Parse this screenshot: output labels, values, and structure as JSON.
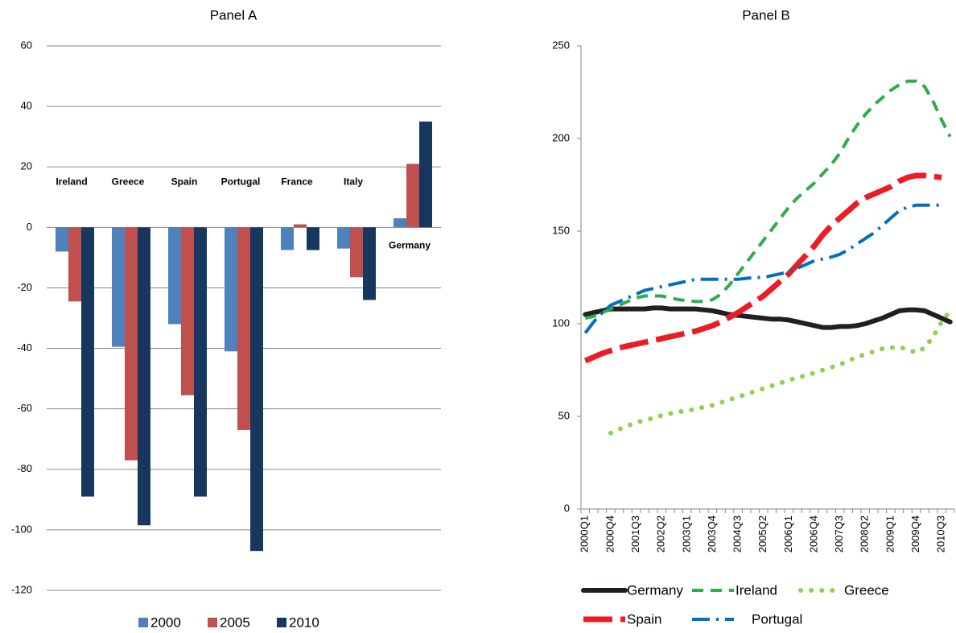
{
  "chart_data": [
    {
      "type": "bar",
      "title": "Panel A",
      "categories": [
        "Ireland",
        "Greece",
        "Spain",
        "Portugal",
        "France",
        "Italy",
        "Germany"
      ],
      "series": [
        {
          "name": "2000",
          "color": "#4f81bd",
          "values": [
            -8,
            -39.5,
            -32,
            -41,
            -7.5,
            -7,
            3
          ]
        },
        {
          "name": "2005",
          "color": "#c0504d",
          "values": [
            -24.5,
            -77,
            -55.5,
            -67,
            1,
            -16.5,
            21
          ]
        },
        {
          "name": "2010",
          "color": "#17375e",
          "values": [
            -89,
            -98.5,
            -89,
            -107,
            -7.5,
            -24,
            35
          ]
        }
      ],
      "ylim": [
        -120,
        60
      ],
      "yticks": [
        -120,
        -100,
        -80,
        -60,
        -40,
        -20,
        0,
        20,
        40,
        60
      ],
      "grid": true
    },
    {
      "type": "line",
      "title": "Panel B",
      "categories": [
        "2000Q1",
        null,
        null,
        "2000Q4",
        null,
        null,
        "2001Q3",
        null,
        null,
        "2002Q2",
        null,
        null,
        "2003Q1",
        null,
        null,
        "2003Q4",
        null,
        null,
        "2004Q3",
        null,
        null,
        "2005Q2",
        null,
        null,
        "2006Q1",
        null,
        null,
        "2006Q4",
        null,
        null,
        "2007Q3",
        null,
        null,
        "2008Q2",
        null,
        null,
        "2009Q1",
        null,
        null,
        "2009Q4",
        null,
        null,
        "2010Q3",
        null
      ],
      "series": [
        {
          "name": "Germany",
          "color": "#231f20",
          "style": "solid",
          "values": [
            105,
            106,
            107,
            108,
            108,
            108,
            108,
            108,
            108.5,
            108.5,
            108,
            108,
            108,
            108,
            107.5,
            107,
            106,
            105,
            104.5,
            104,
            103.5,
            103,
            102.5,
            102.5,
            102,
            101,
            100,
            99,
            98,
            98,
            98.5,
            98.5,
            99,
            100,
            101.5,
            103,
            105,
            107,
            107.5,
            107.5,
            107,
            105,
            103,
            101
          ]
        },
        {
          "name": "Ireland",
          "color": "#2fac4b",
          "style": "dashed",
          "values": [
            103,
            104,
            106,
            108,
            110,
            112,
            114,
            115,
            115,
            115,
            114,
            113,
            112.5,
            112,
            112,
            113,
            116,
            121,
            127,
            133,
            139,
            145,
            151,
            157,
            163,
            168,
            172,
            176,
            181,
            186,
            192,
            200,
            207,
            213,
            218,
            222,
            226,
            229,
            231,
            231,
            228,
            220,
            210,
            201
          ]
        },
        {
          "name": "Greece",
          "color": "#92d050",
          "style": "dotted",
          "values": [
            null,
            null,
            null,
            41,
            43,
            45,
            46.5,
            48,
            49,
            50.5,
            51.5,
            52.5,
            53,
            54,
            55,
            56,
            57.5,
            59,
            60.5,
            62,
            63.5,
            65,
            66.5,
            68,
            69.5,
            71,
            72,
            73.5,
            75,
            76.5,
            78,
            80,
            82,
            83.5,
            85,
            86.5,
            87,
            87.5,
            86,
            84.5,
            87,
            93,
            101,
            107
          ]
        },
        {
          "name": "Spain",
          "color": "#ed1c24",
          "style": "long-dash",
          "values": [
            80,
            82,
            84,
            85.5,
            87,
            88,
            89,
            90,
            91,
            92,
            93,
            94,
            95,
            96,
            97.5,
            99,
            101,
            103.5,
            106,
            109,
            112,
            115,
            119,
            123,
            127,
            132,
            137,
            142,
            148,
            153,
            157,
            161,
            165,
            168,
            170,
            172,
            174,
            177,
            179,
            180,
            180,
            179.5,
            179,
            null
          ]
        },
        {
          "name": "Portugal",
          "color": "#0070c0",
          "style": "dash-dot",
          "values": [
            95,
            101,
            106,
            110,
            112,
            114,
            116,
            118,
            119,
            120,
            121,
            122,
            123,
            124,
            124,
            124,
            124,
            124,
            124,
            124.5,
            125,
            125,
            126,
            127,
            128,
            130,
            132,
            134,
            135,
            136,
            137.5,
            140,
            143,
            146,
            149,
            153,
            157,
            161,
            163,
            164,
            164,
            164,
            164,
            null
          ]
        }
      ],
      "ylim": [
        0,
        250
      ],
      "yticks": [
        0,
        50,
        100,
        150,
        200,
        250
      ],
      "grid": false
    }
  ]
}
